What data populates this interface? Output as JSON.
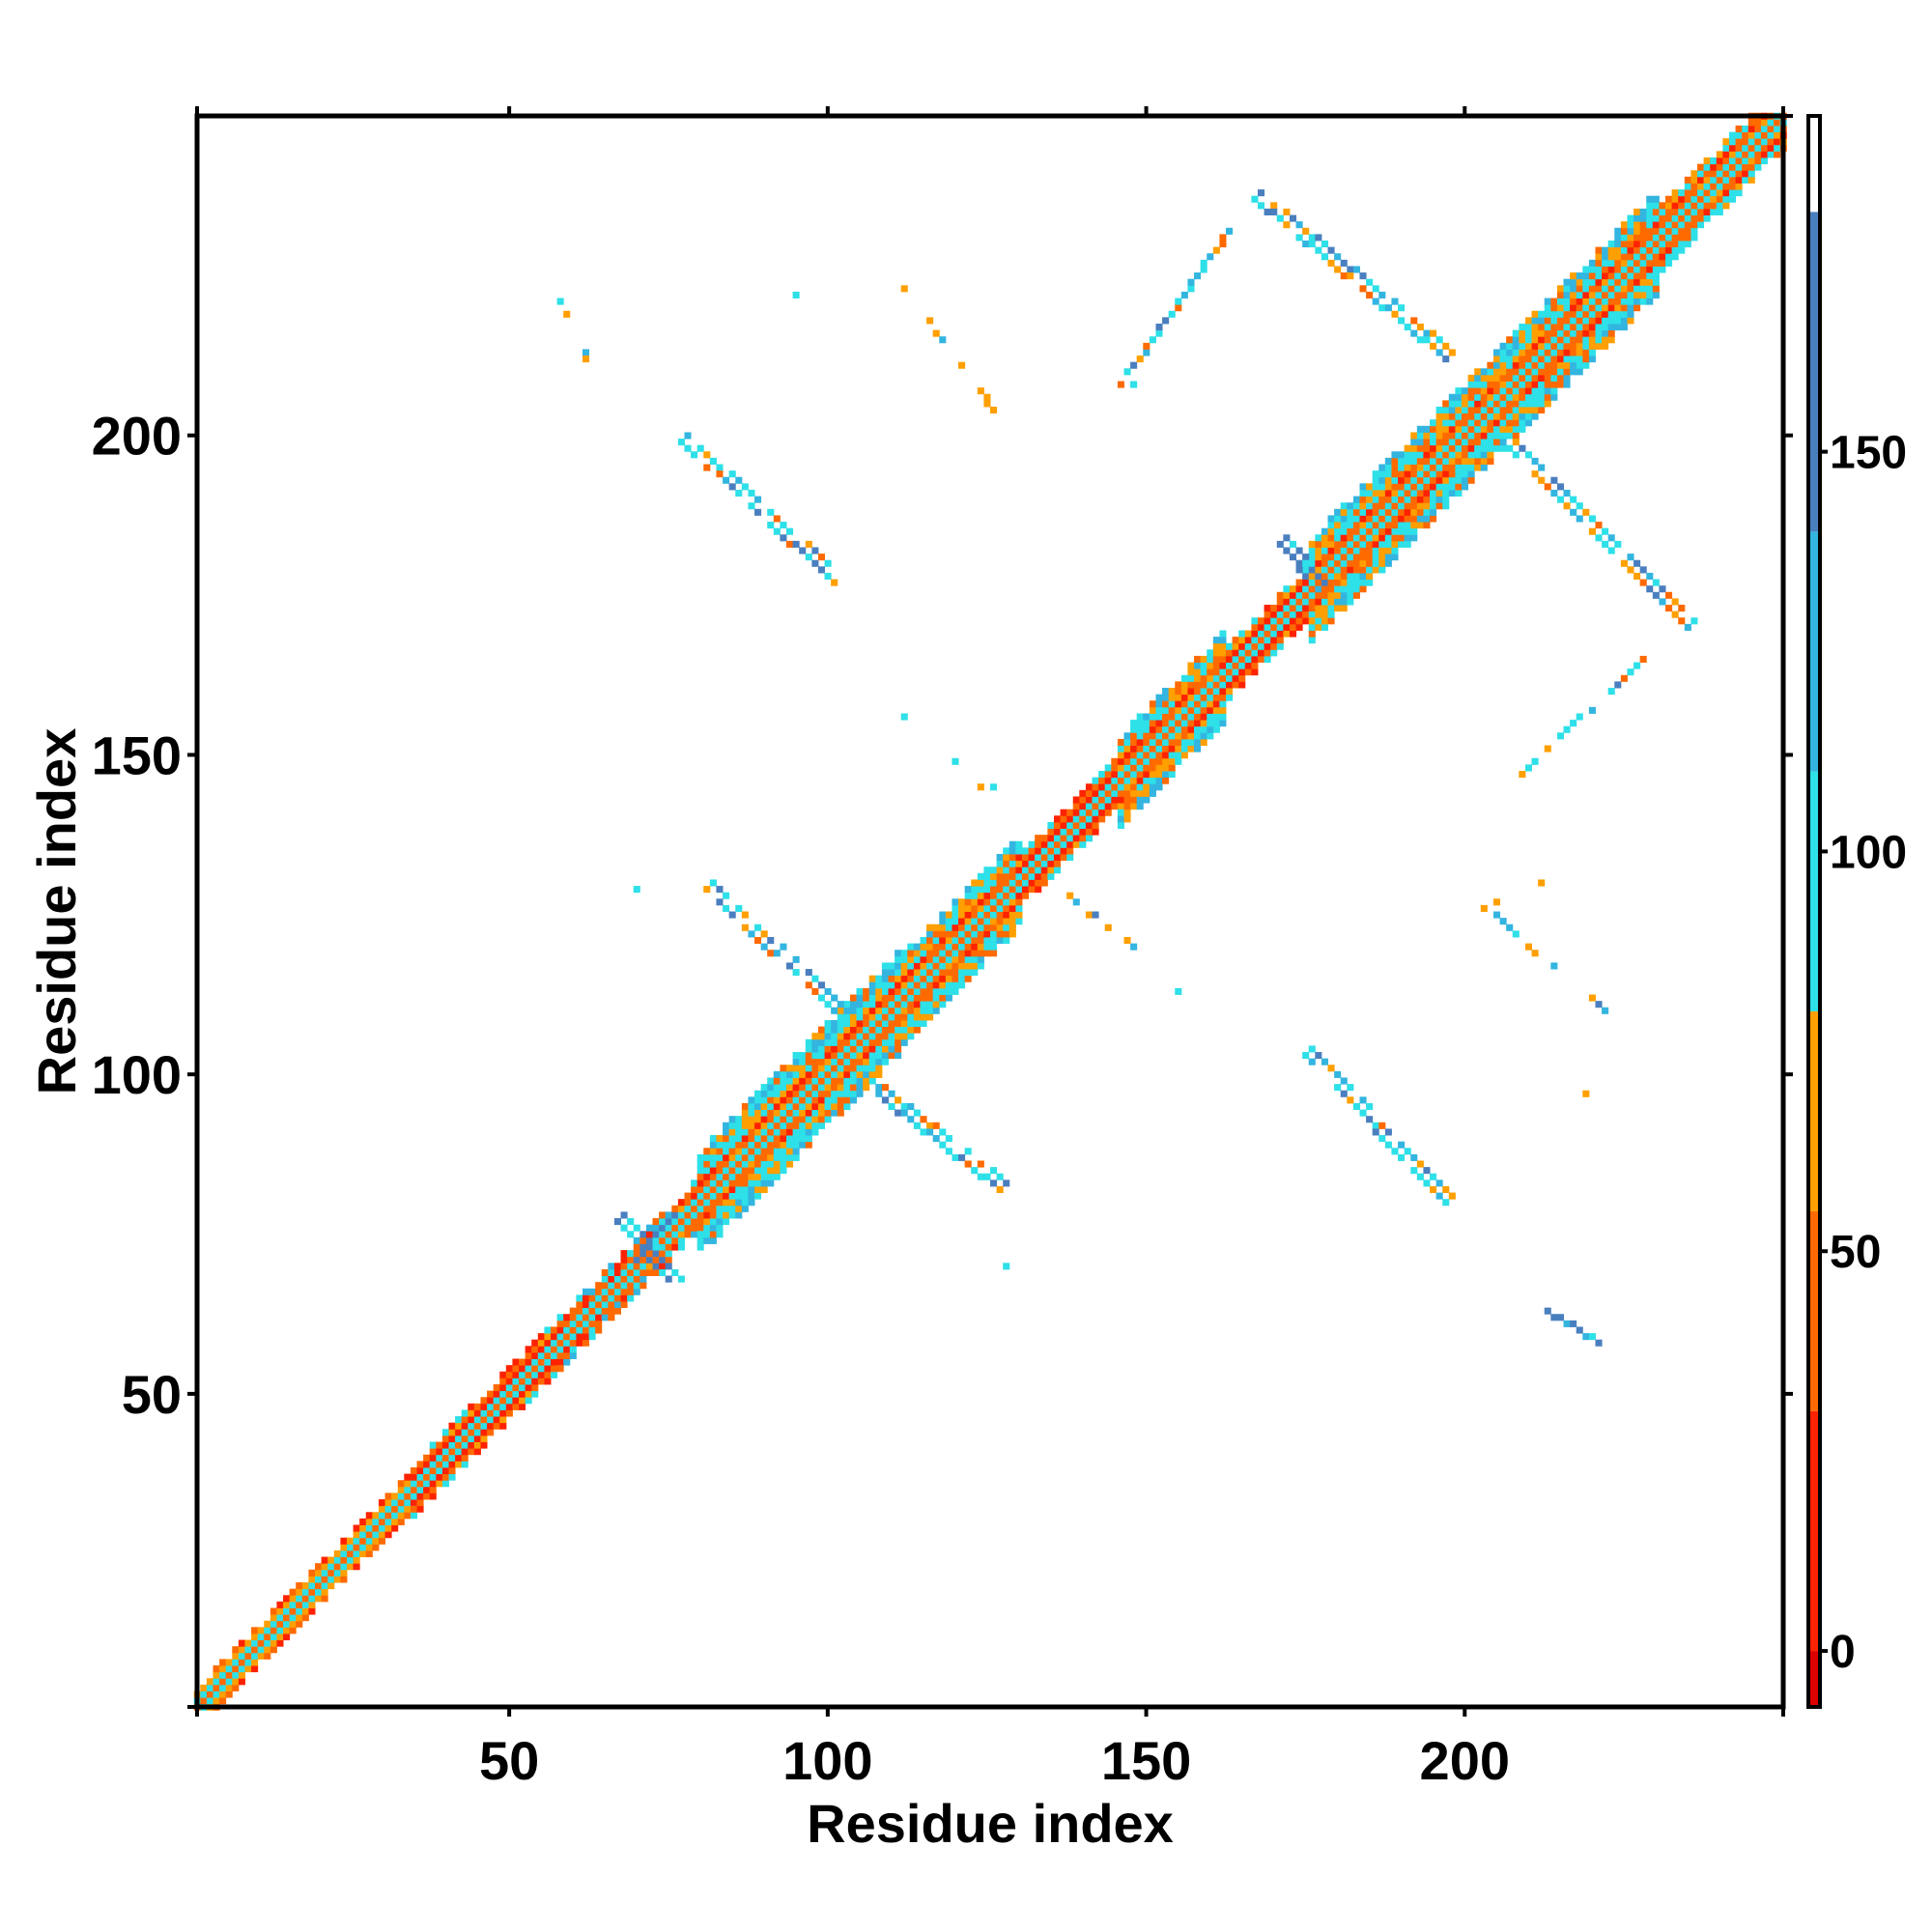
{
  "chart_data": {
    "type": "heatmap",
    "title": "",
    "xlabel": "Residue index",
    "ylabel": "Residue index",
    "xlim": [
      1,
      250
    ],
    "ylim": [
      1,
      250
    ],
    "xticks": [
      50,
      100,
      150,
      200
    ],
    "yticks": [
      50,
      100,
      150,
      200
    ],
    "colorbar": {
      "ticks": [
        0,
        50,
        100,
        150
      ],
      "range": [
        -7,
        192
      ],
      "bins": [
        {
          "from": -7,
          "to": 0,
          "color": "#dd0000"
        },
        {
          "from": 0,
          "to": 30,
          "color": "#ff2200"
        },
        {
          "from": 30,
          "to": 55,
          "color": "#ff6a00"
        },
        {
          "from": 55,
          "to": 80,
          "color": "#ff9f00"
        },
        {
          "from": 80,
          "to": 110,
          "color": "#2ee0e8"
        },
        {
          "from": 110,
          "to": 140,
          "color": "#33b5e0"
        },
        {
          "from": 140,
          "to": 180,
          "color": "#4a7fbf"
        },
        {
          "from": 180,
          "to": 192,
          "color": "#ffffff"
        }
      ]
    },
    "diagonal": {
      "from": 1,
      "to": 250,
      "bands": [
        {
          "start": 1,
          "end": 35,
          "half_width": 3,
          "profile": "helix"
        },
        {
          "start": 35,
          "end": 58,
          "half_width": 4,
          "profile": "loop"
        },
        {
          "start": 58,
          "end": 80,
          "half_width": 4,
          "profile": "mixed"
        },
        {
          "start": 80,
          "end": 112,
          "half_width": 8,
          "profile": "sheet"
        },
        {
          "start": 112,
          "end": 130,
          "half_width": 7,
          "profile": "sheet"
        },
        {
          "start": 130,
          "end": 146,
          "half_width": 4,
          "profile": "loop"
        },
        {
          "start": 146,
          "end": 162,
          "half_width": 7,
          "profile": "sheet"
        },
        {
          "start": 162,
          "end": 176,
          "half_width": 4,
          "profile": "loop"
        },
        {
          "start": 176,
          "end": 230,
          "half_width": 8,
          "profile": "sheet"
        },
        {
          "start": 230,
          "end": 250,
          "half_width": 5,
          "profile": "sheet"
        }
      ]
    },
    "off_diagonal_contacts": [
      {
        "x1": 78,
        "y1": 199,
        "x2": 102,
        "y2": 177,
        "width": 2,
        "profile": "strand"
      },
      {
        "x1": 82,
        "y1": 129,
        "x2": 104,
        "y2": 108,
        "width": 2,
        "profile": "strand"
      },
      {
        "x1": 106,
        "y1": 99,
        "x2": 128,
        "y2": 82,
        "width": 2,
        "profile": "strand"
      },
      {
        "x1": 176,
        "y1": 103,
        "x2": 198,
        "y2": 80,
        "width": 2,
        "profile": "strand"
      },
      {
        "x1": 207,
        "y1": 199,
        "x2": 236,
        "y2": 170,
        "width": 2,
        "profile": "strand"
      },
      {
        "x1": 168,
        "y1": 237,
        "x2": 198,
        "y2": 212,
        "width": 2,
        "profile": "strand"
      },
      {
        "x1": 146,
        "y1": 208,
        "x2": 163,
        "y2": 232,
        "width": 1,
        "profile": "strand"
      },
      {
        "x1": 208,
        "y1": 146,
        "x2": 228,
        "y2": 165,
        "width": 1,
        "profile": "strand"
      },
      {
        "x1": 57,
        "y1": 223,
        "x2": 62,
        "y2": 212,
        "width": 1,
        "profile": "sparse"
      },
      {
        "x1": 111,
        "y1": 224,
        "x2": 126,
        "y2": 204,
        "width": 1,
        "profile": "sparse"
      },
      {
        "x1": 68,
        "y1": 77,
        "x2": 76,
        "y2": 68,
        "width": 3,
        "profile": "blue"
      },
      {
        "x1": 68,
        "y1": 68,
        "x2": 76,
        "y2": 77,
        "width": 2,
        "profile": "blue"
      },
      {
        "x1": 172,
        "y1": 183,
        "x2": 178,
        "y2": 176,
        "width": 2,
        "profile": "blue"
      },
      {
        "x1": 213,
        "y1": 63,
        "x2": 221,
        "y2": 58,
        "width": 1,
        "profile": "blue"
      },
      {
        "x1": 201,
        "y1": 128,
        "x2": 222,
        "y2": 110,
        "width": 1,
        "profile": "sparse"
      },
      {
        "x1": 135,
        "y1": 130,
        "x2": 148,
        "y2": 120,
        "width": 1,
        "profile": "sparse"
      }
    ],
    "isolated_contacts": [
      [
        70,
        129
      ],
      [
        112,
        156
      ],
      [
        120,
        149
      ],
      [
        124,
        145
      ],
      [
        126,
        145
      ],
      [
        128,
        70
      ],
      [
        155,
        113
      ],
      [
        219,
        97
      ],
      [
        95,
        222
      ],
      [
        148,
        208
      ],
      [
        212,
        130
      ],
      [
        205,
        127
      ]
    ]
  }
}
